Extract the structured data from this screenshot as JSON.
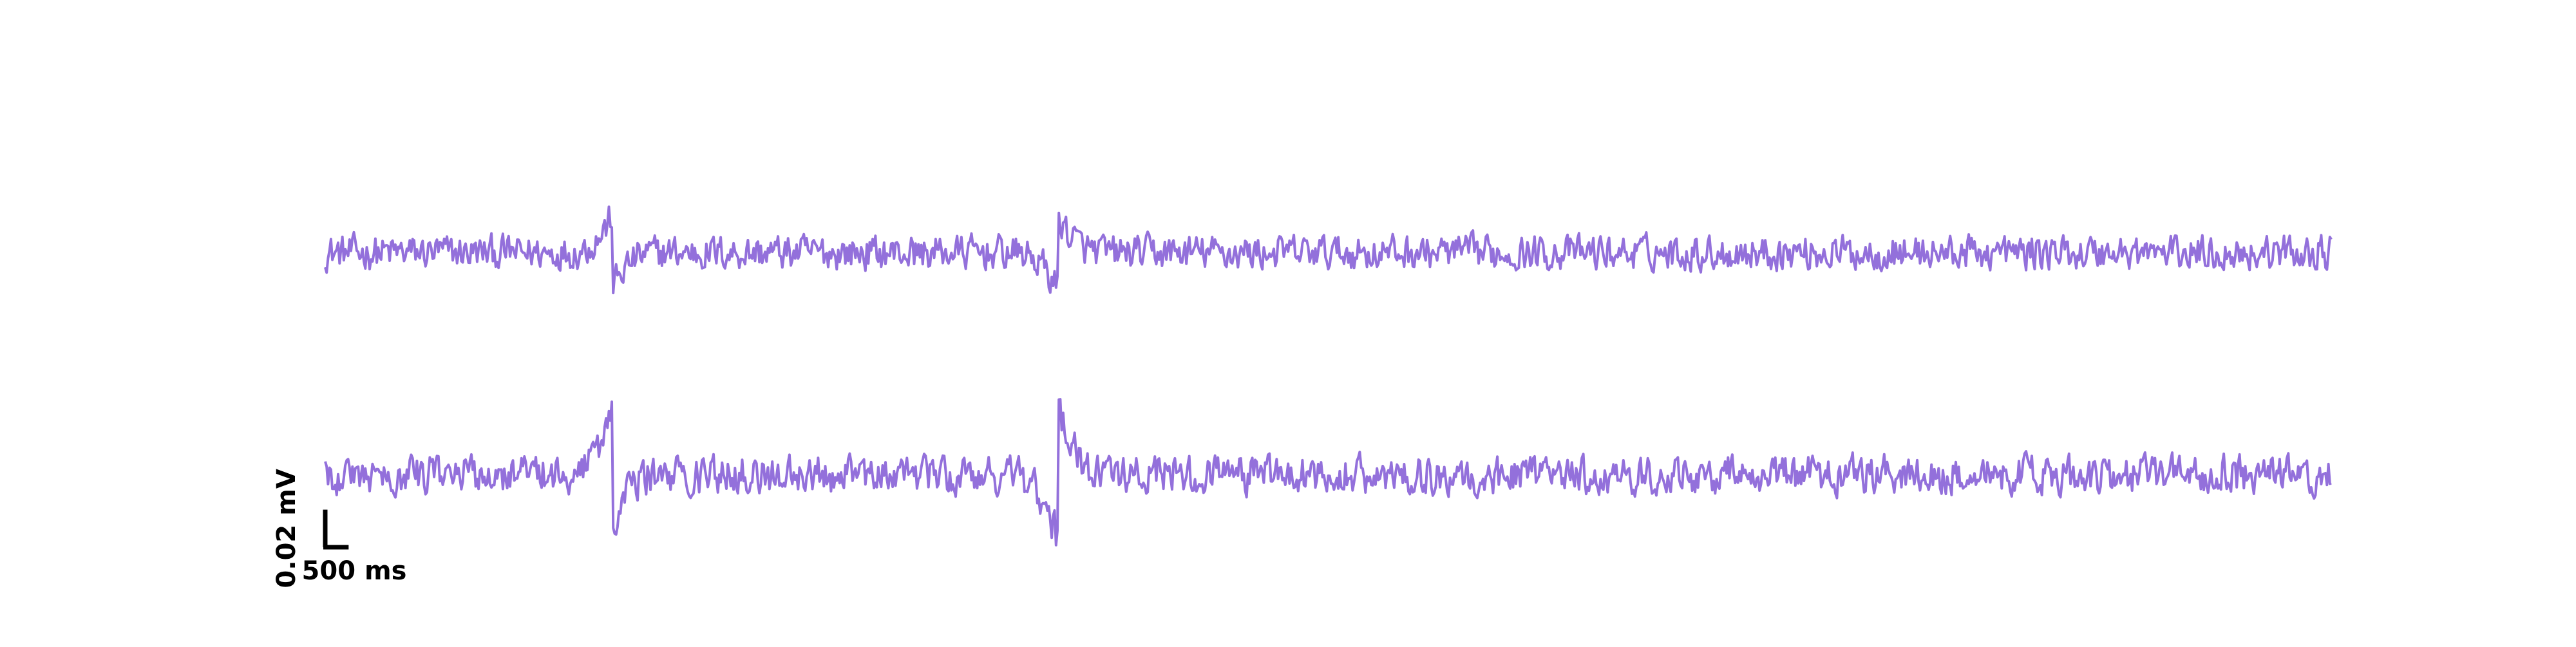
{
  "chart_data": {
    "type": "line",
    "title": "",
    "xlabel": "",
    "ylabel": "",
    "xlim": [
      0,
      15000
    ],
    "ylim": [
      -0.09,
      0.04
    ],
    "grid": false,
    "axes_visible": false,
    "colors": {
      "trace": "#9370DB",
      "scalebar": "#000000"
    },
    "scale_bar": {
      "x_value": 500,
      "x_label": "500 ms",
      "y_value": 0.02,
      "y_label": "0.02 mV"
    },
    "series": [
      {
        "baseline": 0,
        "noise_amplitude": 0.0045,
        "events": [
          {
            "time": 2150,
            "pre_peak": 0.011,
            "post_trough": -0.01,
            "duration": 400
          },
          {
            "time": 5480,
            "pre_peak": -0.011,
            "post_trough": 0.011,
            "duration": 400
          }
        ]
      },
      {
        "baseline": -0.065,
        "noise_amplitude": 0.005,
        "events": [
          {
            "time": 2150,
            "pre_peak": 0.02,
            "post_trough": -0.016,
            "duration": 400
          },
          {
            "time": 5480,
            "pre_peak": -0.02,
            "post_trough": 0.02,
            "duration": 400
          }
        ]
      }
    ]
  }
}
